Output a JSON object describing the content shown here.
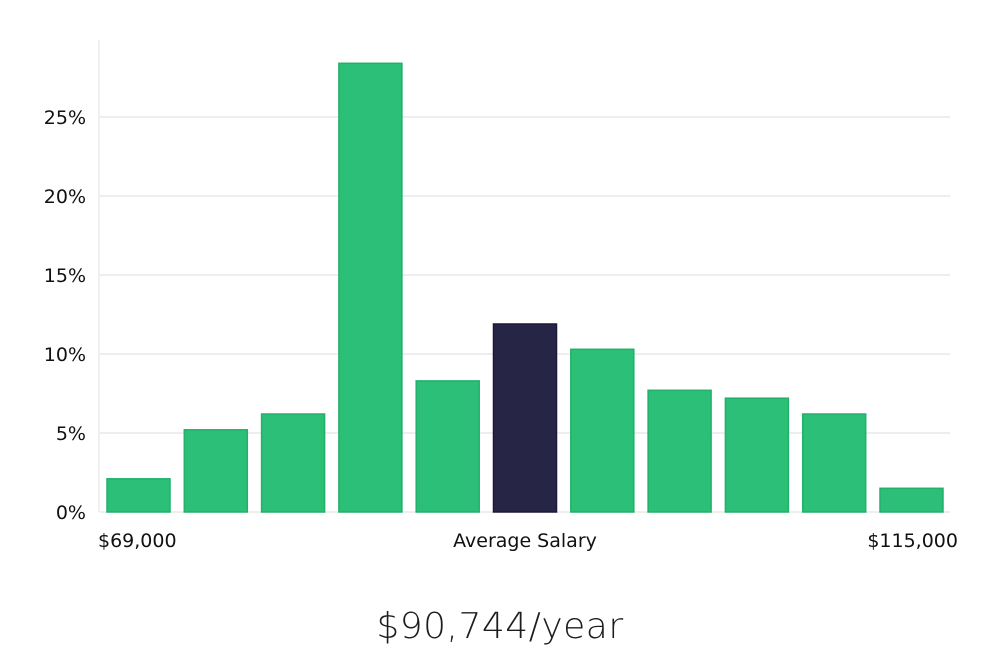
{
  "chart_data": {
    "type": "bar",
    "categories": [
      "1",
      "2",
      "3",
      "4",
      "5",
      "6",
      "7",
      "8",
      "9",
      "10",
      "11"
    ],
    "values": [
      2.1,
      5.2,
      6.2,
      28.4,
      8.3,
      11.9,
      10.3,
      7.7,
      7.2,
      6.2,
      1.5
    ],
    "highlight_index": 5,
    "ylim": [
      0,
      30
    ],
    "yticks": [
      0,
      5,
      10,
      15,
      20,
      25
    ],
    "ytick_labels": [
      "0%",
      "5%",
      "10%",
      "15%",
      "20%",
      "25%"
    ],
    "x_left_label": "$69,000",
    "x_center_label": "Average Salary",
    "x_right_label": "$115,000",
    "grid": true,
    "colors": {
      "bar": "#2bbf78",
      "bar_edge": "#22b06c",
      "highlight": "#272546",
      "grid": "#dcdcdc",
      "axis": "#e2e2e2"
    }
  },
  "headline": "$90,744/year"
}
